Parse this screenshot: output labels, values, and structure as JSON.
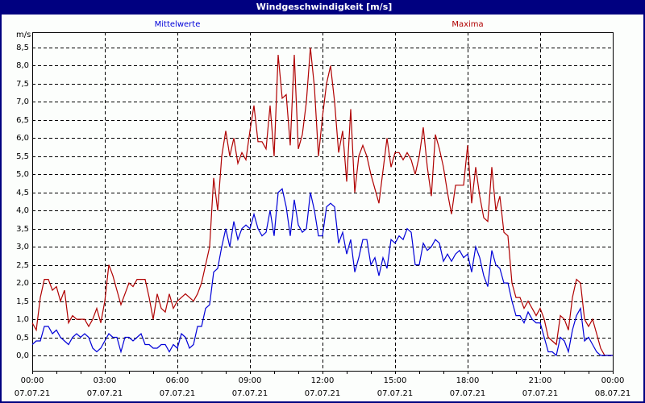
{
  "window": {
    "title": "Windgeschwindigkeit [m/s]",
    "title_bar_color": "#000080"
  },
  "legend": {
    "mean_label": "Mittelwerte",
    "mean_color": "#0000d8",
    "max_label": "Maxima",
    "max_color": "#b00000"
  },
  "axes": {
    "y_unit": "m/s",
    "y_ticks": [
      "0,0",
      "0,5",
      "1,0",
      "1,5",
      "2,0",
      "2,5",
      "3,0",
      "3,5",
      "4,0",
      "4,5",
      "5,0",
      "5,5",
      "6,0",
      "6,5",
      "7,0",
      "7,5",
      "8,0",
      "8,5"
    ],
    "x_ticks": [
      {
        "time": "00:00",
        "date": "07.07.21"
      },
      {
        "time": "03:00",
        "date": "07.07.21"
      },
      {
        "time": "06:00",
        "date": "07.07.21"
      },
      {
        "time": "09:00",
        "date": "07.07.21"
      },
      {
        "time": "12:00",
        "date": "07.07.21"
      },
      {
        "time": "15:00",
        "date": "07.07.21"
      },
      {
        "time": "18:00",
        "date": "07.07.21"
      },
      {
        "time": "21:00",
        "date": "07.07.21"
      },
      {
        "time": "00:00",
        "date": "08.07.21"
      }
    ]
  },
  "chart_data": {
    "type": "line",
    "title": "Windgeschwindigkeit [m/s]",
    "xlabel": "",
    "ylabel": "m/s",
    "ylim": [
      0,
      8.5
    ],
    "xlim": [
      "07.07.21 00:00",
      "08.07.21 00:00"
    ],
    "x_interval_minutes": 10,
    "grid": true,
    "legend_position": "top",
    "x_tick_labels": [
      "00:00 07.07.21",
      "03:00 07.07.21",
      "06:00 07.07.21",
      "09:00 07.07.21",
      "12:00 07.07.21",
      "15:00 07.07.21",
      "18:00 07.07.21",
      "21:00 07.07.21",
      "00:00 08.07.21"
    ],
    "series": [
      {
        "name": "Mittelwerte",
        "color": "#0000d8",
        "values": [
          0.3,
          0.4,
          0.4,
          0.8,
          0.8,
          0.6,
          0.7,
          0.5,
          0.4,
          0.3,
          0.5,
          0.6,
          0.5,
          0.6,
          0.5,
          0.2,
          0.1,
          0.2,
          0.4,
          0.6,
          0.5,
          0.5,
          0.1,
          0.5,
          0.5,
          0.4,
          0.5,
          0.6,
          0.3,
          0.3,
          0.2,
          0.2,
          0.3,
          0.3,
          0.1,
          0.3,
          0.2,
          0.6,
          0.5,
          0.2,
          0.3,
          0.8,
          0.8,
          1.3,
          1.4,
          2.3,
          2.4,
          3.0,
          3.5,
          3.0,
          3.7,
          3.2,
          3.5,
          3.6,
          3.5,
          3.9,
          3.5,
          3.3,
          3.4,
          4.0,
          3.3,
          4.5,
          4.6,
          4.1,
          3.3,
          4.3,
          3.6,
          3.4,
          3.5,
          4.5,
          4.0,
          3.3,
          3.3,
          4.1,
          4.2,
          4.1,
          3.1,
          3.4,
          2.8,
          3.2,
          2.3,
          2.7,
          3.2,
          3.2,
          2.5,
          2.7,
          2.2,
          2.7,
          2.4,
          3.2,
          3.1,
          3.3,
          3.2,
          3.5,
          3.4,
          2.5,
          2.5,
          3.1,
          2.9,
          3.0,
          3.2,
          3.1,
          2.6,
          2.8,
          2.6,
          2.8,
          2.9,
          2.7,
          2.8,
          2.3,
          3.0,
          2.7,
          2.2,
          1.9,
          2.9,
          2.5,
          2.4,
          2.0,
          2.0,
          1.5,
          1.1,
          1.1,
          0.9,
          1.2,
          1.0,
          0.9,
          0.9,
          0.5,
          0.1,
          0.1,
          0.0,
          0.5,
          0.4,
          0.1,
          0.7,
          1.1,
          1.3,
          0.4,
          0.5,
          0.3,
          0.1,
          0.0,
          0.0,
          0.0,
          0.0
        ]
      },
      {
        "name": "Maxima",
        "color": "#b00000",
        "values": [
          0.9,
          0.7,
          1.6,
          2.1,
          2.1,
          1.8,
          1.9,
          1.5,
          1.8,
          0.9,
          1.1,
          1.0,
          1.0,
          1.0,
          0.8,
          1.0,
          1.3,
          0.9,
          1.5,
          2.5,
          2.2,
          1.8,
          1.4,
          1.7,
          2.0,
          1.9,
          2.1,
          2.1,
          2.1,
          1.6,
          1.0,
          1.7,
          1.3,
          1.2,
          1.7,
          1.3,
          1.5,
          1.6,
          1.7,
          1.6,
          1.5,
          1.7,
          2.0,
          2.5,
          3.0,
          4.9,
          4.0,
          5.5,
          6.2,
          5.5,
          6.0,
          5.3,
          5.6,
          5.4,
          6.2,
          6.9,
          5.9,
          5.9,
          5.7,
          6.9,
          5.5,
          8.3,
          7.1,
          7.2,
          5.8,
          8.3,
          5.7,
          6.1,
          7.0,
          8.5,
          7.4,
          5.5,
          6.6,
          7.5,
          8.0,
          7.0,
          5.6,
          6.2,
          4.8,
          6.8,
          4.5,
          5.5,
          5.8,
          5.5,
          5.0,
          4.6,
          4.2,
          5.1,
          6.0,
          5.2,
          5.6,
          5.6,
          5.4,
          5.6,
          5.4,
          5.0,
          5.5,
          6.3,
          5.2,
          4.4,
          6.1,
          5.7,
          5.2,
          4.5,
          3.9,
          4.7,
          4.7,
          4.7,
          5.8,
          4.2,
          5.2,
          4.4,
          3.8,
          3.7,
          5.2,
          4.0,
          4.4,
          3.4,
          3.3,
          2.0,
          1.6,
          1.6,
          1.3,
          1.5,
          1.3,
          1.1,
          1.3,
          1.0,
          0.5,
          0.4,
          0.3,
          1.1,
          1.0,
          0.7,
          1.6,
          2.1,
          2.0,
          1.0,
          0.8,
          1.0,
          0.6,
          0.2,
          0.0,
          0.0,
          0.0
        ]
      }
    ]
  }
}
